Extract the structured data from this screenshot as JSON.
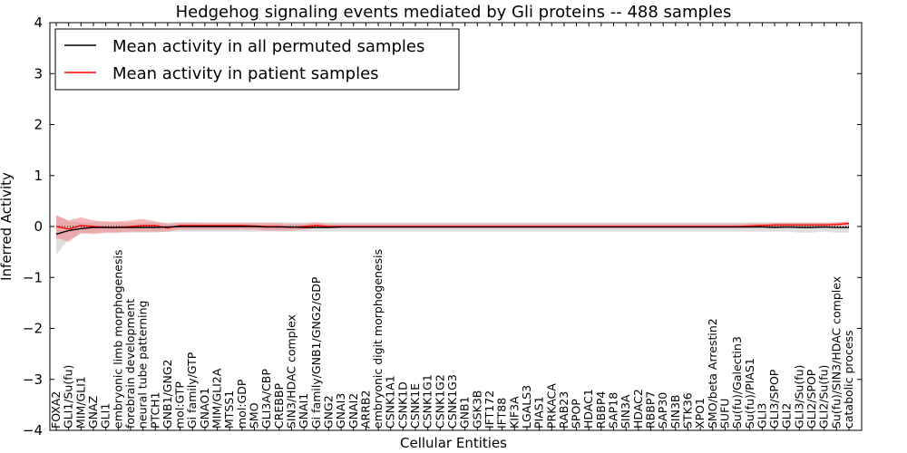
{
  "chart_data": {
    "type": "line",
    "title": "Hedgehog signaling events mediated by Gli proteins -- 488 samples",
    "xlabel": "Cellular Entities",
    "ylabel": "Inferred Activity",
    "ylim": [
      -4,
      4
    ],
    "yticks": [
      -4,
      -3,
      -2,
      -1,
      0,
      1,
      2,
      3,
      4
    ],
    "ytick_labels": [
      "−4",
      "−3",
      "−2",
      "−1",
      "0",
      "1",
      "2",
      "3",
      "4"
    ],
    "legend_position": "top-left",
    "categories": [
      "FOXA2",
      "GLI1/Su(fu)",
      "MIM/GLI1",
      "GNAZ",
      "GLI1",
      "embryonic limb morphogenesis",
      "forebrain development",
      "neural tube patterning",
      "PTCH1",
      "GNB1/GNG2",
      "mol:GTP",
      "Gi family/GTP",
      "GNAO1",
      "MIM/GLI2A",
      "MTSS1",
      "mol:GDP",
      "SMO",
      "GLI3A/CBP",
      "CREBBP",
      "SIN3/HDAC complex",
      "GNAI1",
      "Gi family/GNB1/GNG2/GDP",
      "GNG2",
      "GNAI3",
      "GNAI2",
      "ARRB2",
      "embryonic digit morphogenesis",
      "CSNK1A1",
      "CSNK1D",
      "CSNK1E",
      "CSNK1G1",
      "CSNK1G2",
      "CSNK1G3",
      "GNB1",
      "GSK3B",
      "IFT172",
      "IFT88",
      "KIF3A",
      "LGALS3",
      "PIAS1",
      "PRKACA",
      "RAB23",
      "SPOP",
      "HDAC1",
      "RBBP4",
      "SAP18",
      "SIN3A",
      "HDAC2",
      "RBBP7",
      "SAP30",
      "SIN3B",
      "STK36",
      "XPO1",
      "SMO/beta Arrestin2",
      "SUFU",
      "Su(fu)/Galectin3",
      "Su(fu)/PIAS1",
      "GLI3",
      "GLI3/SPOP",
      "GLI2",
      "GLI3/Su(fu)",
      "GLI2/SPOP",
      "GLI2/Su(fu)",
      "Su(fu)/SIN3/HDAC complex",
      "catabolic process"
    ],
    "series": [
      {
        "name": "Mean activity in all permuted samples",
        "color": "#000000",
        "band_color": "#c8c8c8",
        "values": [
          -0.15,
          -0.08,
          -0.04,
          -0.02,
          -0.02,
          -0.02,
          -0.02,
          -0.02,
          -0.02,
          -0.01,
          0.0,
          0.0,
          0.0,
          0.0,
          0.0,
          0.0,
          0.0,
          -0.01,
          -0.01,
          -0.01,
          -0.02,
          -0.02,
          -0.02,
          -0.01,
          -0.01,
          -0.01,
          -0.01,
          -0.01,
          -0.01,
          -0.01,
          -0.01,
          -0.01,
          -0.01,
          -0.01,
          -0.01,
          -0.01,
          -0.01,
          -0.01,
          -0.01,
          -0.01,
          -0.01,
          -0.01,
          -0.01,
          -0.01,
          -0.01,
          -0.01,
          -0.01,
          -0.01,
          -0.01,
          -0.01,
          -0.01,
          -0.01,
          -0.01,
          -0.01,
          -0.01,
          -0.01,
          -0.01,
          -0.01,
          -0.02,
          -0.01,
          -0.02,
          -0.02,
          -0.01,
          -0.02,
          -0.02
        ],
        "lower": [
          -0.55,
          -0.25,
          -0.15,
          -0.12,
          -0.12,
          -0.12,
          -0.12,
          -0.12,
          -0.12,
          -0.1,
          -0.1,
          -0.1,
          -0.1,
          -0.1,
          -0.1,
          -0.1,
          -0.1,
          -0.1,
          -0.1,
          -0.1,
          -0.1,
          -0.1,
          -0.1,
          -0.1,
          -0.1,
          -0.1,
          -0.1,
          -0.1,
          -0.1,
          -0.1,
          -0.1,
          -0.1,
          -0.1,
          -0.1,
          -0.1,
          -0.1,
          -0.1,
          -0.1,
          -0.1,
          -0.1,
          -0.1,
          -0.1,
          -0.1,
          -0.1,
          -0.1,
          -0.1,
          -0.1,
          -0.1,
          -0.1,
          -0.1,
          -0.1,
          -0.1,
          -0.1,
          -0.1,
          -0.1,
          -0.1,
          -0.1,
          -0.1,
          -0.1,
          -0.1,
          -0.12,
          -0.12,
          -0.1,
          -0.12,
          -0.12
        ],
        "upper": [
          0.22,
          0.1,
          0.08,
          0.08,
          0.08,
          0.08,
          0.08,
          0.08,
          0.08,
          0.08,
          0.08,
          0.08,
          0.08,
          0.08,
          0.08,
          0.08,
          0.08,
          0.08,
          0.08,
          0.08,
          0.08,
          0.08,
          0.08,
          0.08,
          0.08,
          0.08,
          0.08,
          0.08,
          0.08,
          0.08,
          0.08,
          0.08,
          0.08,
          0.08,
          0.08,
          0.08,
          0.08,
          0.08,
          0.08,
          0.08,
          0.08,
          0.08,
          0.08,
          0.08,
          0.08,
          0.08,
          0.08,
          0.08,
          0.08,
          0.08,
          0.08,
          0.08,
          0.08,
          0.08,
          0.08,
          0.08,
          0.08,
          0.08,
          0.08,
          0.08,
          0.08,
          0.08,
          0.08,
          0.08,
          0.08
        ]
      },
      {
        "name": "Mean activity in patient samples",
        "color": "#ff0000",
        "band_color": "#f08080",
        "values": [
          0.0,
          -0.05,
          0.02,
          0.0,
          -0.02,
          -0.02,
          0.0,
          0.02,
          0.02,
          -0.03,
          0.02,
          0.02,
          0.02,
          0.02,
          0.02,
          0.02,
          0.01,
          0.0,
          0.0,
          -0.02,
          0.0,
          0.02,
          0.0,
          0.0,
          0.0,
          0.0,
          0.0,
          0.0,
          0.0,
          0.0,
          0.0,
          0.0,
          0.0,
          0.0,
          0.0,
          0.0,
          0.0,
          0.0,
          0.0,
          0.0,
          0.0,
          0.0,
          0.0,
          0.0,
          0.0,
          0.0,
          0.0,
          0.0,
          0.0,
          0.0,
          0.0,
          0.0,
          0.0,
          0.0,
          0.0,
          0.0,
          0.01,
          0.02,
          0.03,
          0.03,
          0.03,
          0.03,
          0.03,
          0.04,
          0.06
        ],
        "lower": [
          -0.22,
          -0.3,
          -0.12,
          -0.15,
          -0.12,
          -0.12,
          -0.1,
          -0.1,
          -0.1,
          -0.1,
          -0.06,
          -0.06,
          -0.06,
          -0.06,
          -0.06,
          -0.06,
          -0.06,
          -0.08,
          -0.08,
          -0.08,
          -0.06,
          -0.03,
          -0.03,
          -0.03,
          -0.03,
          -0.03,
          -0.03,
          -0.03,
          -0.03,
          -0.03,
          -0.03,
          -0.03,
          -0.03,
          -0.03,
          -0.03,
          -0.03,
          -0.03,
          -0.03,
          -0.03,
          -0.03,
          -0.03,
          -0.03,
          -0.03,
          -0.03,
          -0.03,
          -0.03,
          -0.03,
          -0.03,
          -0.03,
          -0.03,
          -0.03,
          -0.03,
          -0.03,
          -0.03,
          -0.03,
          -0.03,
          -0.02,
          -0.02,
          -0.02,
          -0.02,
          -0.01,
          -0.01,
          0.0,
          0.01,
          0.02
        ],
        "upper": [
          0.22,
          0.12,
          0.18,
          0.12,
          0.1,
          0.1,
          0.12,
          0.15,
          0.1,
          0.05,
          0.08,
          0.08,
          0.07,
          0.07,
          0.07,
          0.07,
          0.07,
          0.07,
          0.07,
          0.05,
          0.05,
          0.08,
          0.05,
          0.05,
          0.05,
          0.05,
          0.05,
          0.05,
          0.05,
          0.05,
          0.05,
          0.05,
          0.05,
          0.05,
          0.05,
          0.05,
          0.05,
          0.05,
          0.05,
          0.05,
          0.05,
          0.05,
          0.05,
          0.05,
          0.05,
          0.05,
          0.05,
          0.05,
          0.05,
          0.05,
          0.05,
          0.05,
          0.05,
          0.05,
          0.05,
          0.05,
          0.06,
          0.06,
          0.07,
          0.07,
          0.07,
          0.07,
          0.07,
          0.08,
          0.1
        ]
      }
    ]
  }
}
